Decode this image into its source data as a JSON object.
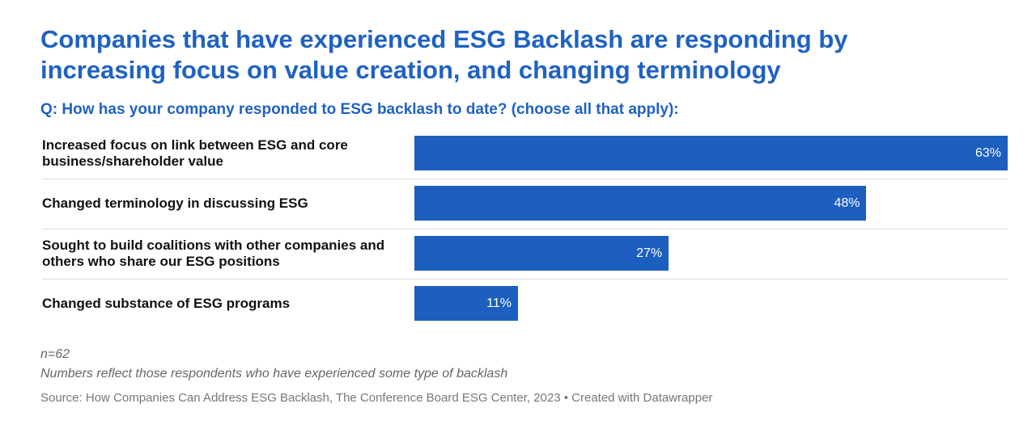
{
  "chart_data": {
    "type": "bar",
    "orientation": "horizontal",
    "title": "Companies that have experienced ESG Backlash are responding by increasing focus on value creation, and changing terminology",
    "subtitle": "Q: How has your company responded to ESG backlash to date? (choose all that apply):",
    "categories": [
      "Increased focus on link between ESG and core business/shareholder value",
      "Changed terminology in discussing ESG",
      "Sought to build coalitions with other companies and others who share our ESG positions",
      "Changed substance of ESG programs"
    ],
    "values": [
      63,
      48,
      27,
      11
    ],
    "value_labels": [
      "63%",
      "48%",
      "27%",
      "11%"
    ],
    "color": "#1d5fbf",
    "notes": [
      "n=62",
      "Numbers reflect those respondents who have experienced some type of backlash"
    ],
    "source": "Source: How Companies Can Address ESG Backlash, The Conference Board ESG Center, 2023 • Created with Datawrapper"
  }
}
